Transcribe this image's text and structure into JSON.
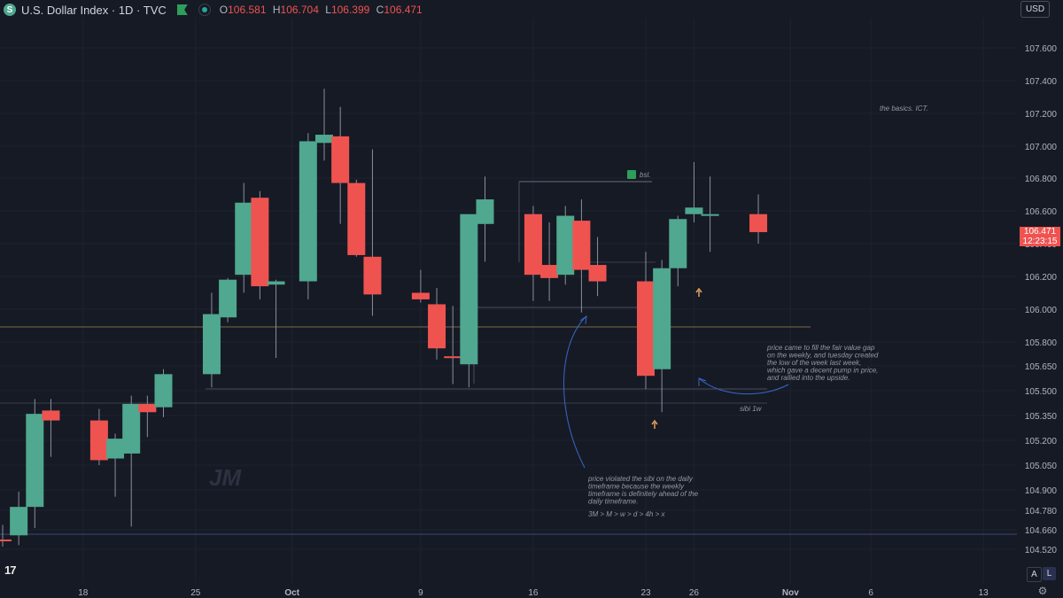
{
  "header": {
    "symbol_icon": "S",
    "title": "U.S. Dollar Index · 1D · TVC",
    "ohlc": {
      "o_label": "O",
      "o": "106.581",
      "h_label": "H",
      "h": "106.704",
      "l_label": "L",
      "l": "106.399",
      "c_label": "C",
      "c": "106.471"
    }
  },
  "currency": "USD",
  "price_badge": {
    "price": "106.471",
    "countdown": "12:23:15"
  },
  "bottom_controls": {
    "auto": "A",
    "log": "L"
  },
  "logo_icon": "tradingview-logo",
  "colors": {
    "up": "#4fa88f",
    "down": "#ef5350",
    "background": "#161a25",
    "grid": "#1f2330",
    "text": "#b2b5be"
  },
  "chart_data": {
    "type": "candlestick",
    "y_ticks": [
      "107.600",
      "107.400",
      "107.200",
      "107.000",
      "106.800",
      "106.600",
      "106.400",
      "106.200",
      "106.000",
      "105.800",
      "105.650",
      "105.500",
      "105.350",
      "105.200",
      "105.050",
      "104.900",
      "104.780",
      "104.660",
      "104.520"
    ],
    "x_ticks": [
      {
        "label": "18",
        "day": 5
      },
      {
        "label": "25",
        "day": 12
      },
      {
        "label": "Oct",
        "day": 18
      },
      {
        "label": "9",
        "day": 26
      },
      {
        "label": "16",
        "day": 33
      },
      {
        "label": "23",
        "day": 40
      },
      {
        "label": "26",
        "day": 43
      },
      {
        "label": "Nov",
        "day": 49
      },
      {
        "label": "6",
        "day": 54
      },
      {
        "label": "13",
        "day": 61
      }
    ],
    "candles": [
      {
        "date": "Sep 12",
        "o": 104.59,
        "h": 104.69,
        "l": 104.54,
        "c": 104.58
      },
      {
        "date": "Sep 13",
        "o": 104.62,
        "h": 104.89,
        "l": 104.55,
        "c": 104.8
      },
      {
        "date": "Sep 14",
        "o": 104.8,
        "h": 105.45,
        "l": 104.67,
        "c": 105.36
      },
      {
        "date": "Sep 15",
        "o": 105.38,
        "h": 105.45,
        "l": 105.1,
        "c": 105.32
      },
      {
        "date": "Sep 18",
        "o": 105.32,
        "h": 105.39,
        "l": 105.05,
        "c": 105.08
      },
      {
        "date": "Sep 19",
        "o": 105.09,
        "h": 105.24,
        "l": 104.86,
        "c": 105.21
      },
      {
        "date": "Sep 20",
        "o": 105.12,
        "h": 105.47,
        "l": 104.68,
        "c": 105.42
      },
      {
        "date": "Sep 21",
        "o": 105.42,
        "h": 105.47,
        "l": 105.22,
        "c": 105.37
      },
      {
        "date": "Sep 22",
        "o": 105.4,
        "h": 105.63,
        "l": 105.34,
        "c": 105.6
      },
      {
        "date": "Sep 25",
        "o": 105.6,
        "h": 106.1,
        "l": 105.52,
        "c": 105.97
      },
      {
        "date": "Sep 26",
        "o": 105.95,
        "h": 106.19,
        "l": 105.92,
        "c": 106.18
      },
      {
        "date": "Sep 27",
        "o": 106.21,
        "h": 106.77,
        "l": 106.1,
        "c": 106.65
      },
      {
        "date": "Sep 28",
        "o": 106.68,
        "h": 106.72,
        "l": 106.06,
        "c": 106.14
      },
      {
        "date": "Sep 29",
        "o": 106.15,
        "h": 106.18,
        "l": 105.7,
        "c": 106.17
      },
      {
        "date": "Oct 2",
        "o": 106.17,
        "h": 107.08,
        "l": 106.06,
        "c": 107.03
      },
      {
        "date": "Oct 3",
        "o": 107.02,
        "h": 107.35,
        "l": 106.91,
        "c": 107.07
      },
      {
        "date": "Oct 4",
        "o": 107.06,
        "h": 107.24,
        "l": 106.52,
        "c": 106.77
      },
      {
        "date": "Oct 5",
        "o": 106.77,
        "h": 106.79,
        "l": 106.32,
        "c": 106.33
      },
      {
        "date": "Oct 6",
        "o": 106.32,
        "h": 106.98,
        "l": 105.96,
        "c": 106.09
      },
      {
        "date": "Oct 9",
        "o": 106.1,
        "h": 106.24,
        "l": 106.04,
        "c": 106.06
      },
      {
        "date": "Oct 10",
        "o": 106.03,
        "h": 106.13,
        "l": 105.69,
        "c": 105.76
      },
      {
        "date": "Oct 11",
        "o": 105.71,
        "h": 106.02,
        "l": 105.54,
        "c": 105.7
      },
      {
        "date": "Oct 12",
        "o": 105.66,
        "h": 106.58,
        "l": 105.52,
        "c": 106.58
      },
      {
        "date": "Oct 13",
        "o": 106.52,
        "h": 106.81,
        "l": 106.29,
        "c": 106.67
      },
      {
        "date": "Oct 16",
        "o": 106.58,
        "h": 106.63,
        "l": 106.05,
        "c": 106.21
      },
      {
        "date": "Oct 17",
        "o": 106.27,
        "h": 106.53,
        "l": 106.05,
        "c": 106.19
      },
      {
        "date": "Oct 18",
        "o": 106.21,
        "h": 106.63,
        "l": 106.15,
        "c": 106.57
      },
      {
        "date": "Oct 19",
        "o": 106.54,
        "h": 106.67,
        "l": 105.98,
        "c": 106.24
      },
      {
        "date": "Oct 20",
        "o": 106.27,
        "h": 106.44,
        "l": 106.08,
        "c": 106.17
      },
      {
        "date": "Oct 23",
        "o": 106.17,
        "h": 106.35,
        "l": 105.51,
        "c": 105.59
      },
      {
        "date": "Oct 24",
        "o": 105.63,
        "h": 106.3,
        "l": 105.37,
        "c": 106.25
      },
      {
        "date": "Oct 25",
        "o": 106.25,
        "h": 106.57,
        "l": 106.14,
        "c": 106.55
      },
      {
        "date": "Oct 26",
        "o": 106.58,
        "h": 106.9,
        "l": 106.53,
        "c": 106.62
      },
      {
        "date": "Oct 27",
        "o": 106.58,
        "h": 106.81,
        "l": 106.35,
        "c": 106.58
      },
      {
        "date": "Oct 30",
        "o": 106.58,
        "h": 106.7,
        "l": 106.4,
        "c": 106.47
      }
    ],
    "annotations": [
      {
        "text": "the basics. ICT.",
        "kind": "label"
      },
      {
        "text": "bsl.",
        "kind": "label"
      },
      {
        "text": "sibi 1w",
        "kind": "label"
      },
      {
        "text": "JM",
        "kind": "watermark"
      },
      {
        "text": "price came to fill the fair value gap on the weekly, and tuesday created the low of the week last week, which gave a decent pump in price, and rallied into the upside.",
        "kind": "note",
        "lines": [
          "price came to fill the fair value gap",
          "on the weekly, and tuesday created",
          "the low of the week last week,",
          "which gave a decent pump in price,",
          "and rallied into the upside."
        ]
      },
      {
        "text": "price violated the sibi on the daily timeframe because the weekly timeframe is definitely ahead of the daily timeframe.",
        "kind": "note",
        "lines": [
          "price violated the sibi on the daily",
          "timeframe because the weekly",
          "timeframe is definitely ahead of the",
          "daily timeframe."
        ]
      },
      {
        "text": "3M > M > w > d > 4h > x",
        "kind": "note"
      }
    ]
  }
}
